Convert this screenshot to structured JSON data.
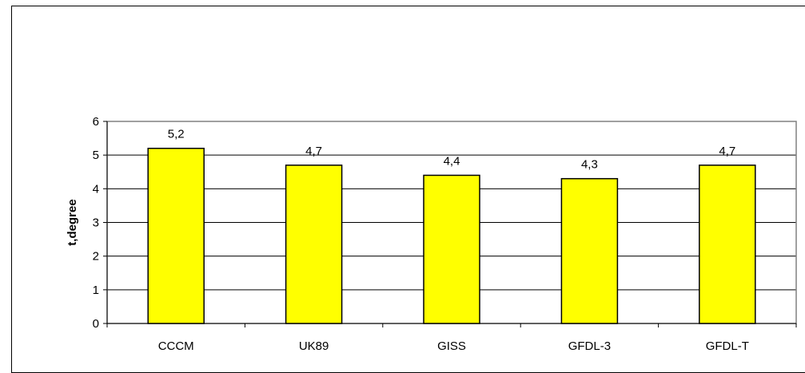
{
  "chart_data": {
    "type": "bar",
    "categories": [
      "CCCM",
      "UK89",
      "GISS",
      "GFDL-3",
      "GFDL-T"
    ],
    "values": [
      5.2,
      4.7,
      4.4,
      4.3,
      4.7
    ],
    "data_labels": [
      "5,2",
      "4,7",
      "4,4",
      "4,3",
      "4,7"
    ],
    "ylabel": "t,degree",
    "xlabel": "",
    "ylim": [
      0,
      6
    ],
    "yticks": [
      0,
      1,
      2,
      3,
      4,
      5,
      6
    ],
    "grid": true,
    "legend": "none",
    "colors": {
      "bar_fill": "#ffff00",
      "bar_stroke": "#000000",
      "grid": "#000000",
      "plot_border": "#808080"
    }
  }
}
